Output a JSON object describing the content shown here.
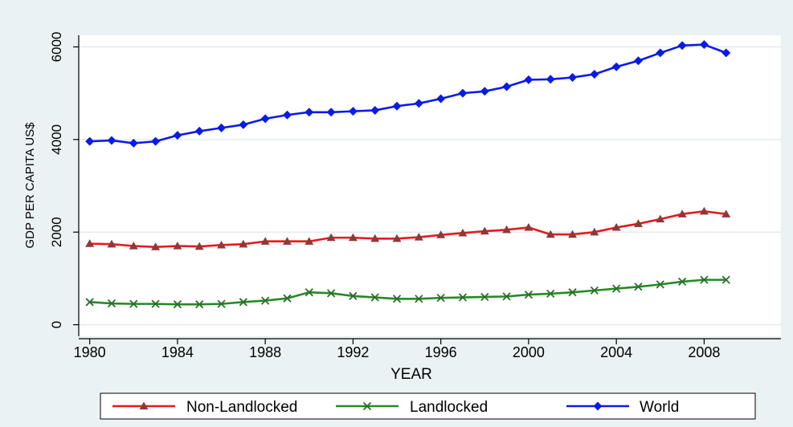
{
  "chart_data": {
    "type": "line",
    "title": "",
    "xlabel": "YEAR",
    "ylabel": "GDP PER CAPITA US$",
    "xlim": [
      1979.5,
      2011.5
    ],
    "ylim": [
      -250,
      6250
    ],
    "x_ticks": [
      1980,
      1984,
      1988,
      1992,
      1996,
      2000,
      2004,
      2008
    ],
    "y_ticks": [
      0,
      2000,
      4000,
      6000
    ],
    "grid": "horizontal",
    "legend": "bottom",
    "x": [
      1980,
      1981,
      1982,
      1983,
      1984,
      1985,
      1986,
      1987,
      1988,
      1989,
      1990,
      1991,
      1992,
      1993,
      1994,
      1995,
      1996,
      1997,
      1998,
      1999,
      2000,
      2001,
      2002,
      2003,
      2004,
      2005,
      2006,
      2007,
      2008,
      2009
    ],
    "series": [
      {
        "name": "Non-Landlocked",
        "color": "#e8191c",
        "marker_color": "#8b3a3a",
        "marker": "triangle",
        "values": [
          1750,
          1740,
          1700,
          1680,
          1700,
          1690,
          1720,
          1740,
          1800,
          1800,
          1800,
          1880,
          1880,
          1860,
          1860,
          1890,
          1940,
          1980,
          2020,
          2050,
          2100,
          1950,
          1950,
          2000,
          2100,
          2180,
          2280,
          2390,
          2450,
          2390
        ]
      },
      {
        "name": "Landlocked",
        "color": "#238b23",
        "marker_color": "#2e6b2e",
        "marker": "x",
        "values": [
          490,
          460,
          450,
          450,
          440,
          440,
          450,
          490,
          520,
          570,
          700,
          680,
          620,
          590,
          560,
          560,
          580,
          590,
          600,
          610,
          650,
          670,
          700,
          740,
          780,
          820,
          870,
          930,
          970,
          970
        ]
      },
      {
        "name": "World",
        "color": "#0b1be6",
        "marker_color": "#0b1be6",
        "marker": "diamond",
        "values": [
          3960,
          3980,
          3920,
          3960,
          4090,
          4180,
          4250,
          4320,
          4450,
          4530,
          4590,
          4590,
          4610,
          4630,
          4720,
          4780,
          4880,
          5000,
          5040,
          5140,
          5290,
          5300,
          5340,
          5410,
          5570,
          5700,
          5870,
          6030,
          6050,
          5870
        ]
      }
    ]
  }
}
